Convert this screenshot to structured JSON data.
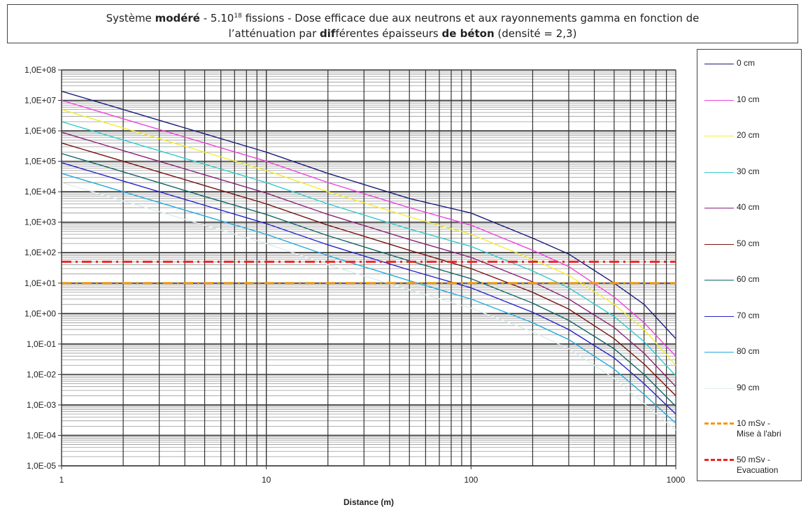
{
  "title": {
    "line1_pre": "Système ",
    "line1_bold1": "modéré",
    "line1_mid": " - 5.10",
    "line1_sup": "18",
    "line1_post": " fissions - Dose efficace due aux neutrons et aux rayonnements gamma en fonction de",
    "line2_pre": "l’atténuation par ",
    "line2_bold1": "dif",
    "line2_mid1": "férentes épaisseurs ",
    "line2_bold2": "de béton",
    "line2_post": " (densité = 2,3)"
  },
  "chart_data": {
    "type": "line",
    "xlabel": "Distance (m)",
    "ylabel": "",
    "xscale": "log",
    "yscale": "log",
    "xlim": [
      1,
      1000
    ],
    "ylim": [
      1e-05,
      100000000.0
    ],
    "grid": true,
    "legend_position": "right",
    "x_tick_labels": [
      "1",
      "10",
      "100",
      "1000"
    ],
    "y_tick_labels": [
      "1,0E+08",
      "1,0E+07",
      "1,0E+06",
      "1,0E+05",
      "1,0E+04",
      "1,0E+03",
      "1,0E+02",
      "1,0E+01",
      "1,0E+00",
      "1,0E-01",
      "1,0E-02",
      "1,0E-03",
      "1,0E-04",
      "1,0E-05"
    ],
    "x": [
      1,
      2,
      5,
      10,
      20,
      50,
      100,
      200,
      300,
      500,
      700,
      1000
    ],
    "series": [
      {
        "name": "0 cm",
        "color": "#1a1a7a",
        "dash": "solid",
        "values": [
          20000000.0,
          5000000.0,
          800000.0,
          200000.0,
          40000.0,
          6000.0,
          2000.0,
          300.0,
          90.0,
          10.0,
          2.0,
          0.15
        ]
      },
      {
        "name": "10 cm",
        "color": "#ee44dd",
        "dash": "solid",
        "values": [
          10000000.0,
          2500000.0,
          400000.0,
          100000.0,
          20000.0,
          3000.0,
          800.0,
          120.0,
          35.0,
          3.5,
          0.5,
          0.04
        ]
      },
      {
        "name": "20 cm",
        "color": "#f2ee30",
        "dash": "solid",
        "values": [
          5000000.0,
          1250000.0,
          200000.0,
          50000.0,
          10000.0,
          1500.0,
          400.0,
          60.0,
          18.0,
          2.0,
          0.3,
          0.02
        ]
      },
      {
        "name": "30 cm",
        "color": "#33cccc",
        "dash": "solid",
        "values": [
          2000000.0,
          500000.0,
          80000.0,
          20000.0,
          4000.0,
          600.0,
          160.0,
          25.0,
          7.0,
          0.8,
          0.12,
          0.009
        ]
      },
      {
        "name": "40 cm",
        "color": "#882277",
        "dash": "solid",
        "values": [
          900000.0,
          225000.0,
          36000.0,
          9000.0,
          1800.0,
          270.0,
          70.0,
          11.0,
          3.0,
          0.35,
          0.05,
          0.004
        ]
      },
      {
        "name": "50 cm",
        "color": "#771111",
        "dash": "solid",
        "values": [
          400000.0,
          100000.0,
          16000.0,
          4000.0,
          800.0,
          120.0,
          30.0,
          5.0,
          1.4,
          0.15,
          0.022,
          0.002
        ]
      },
      {
        "name": "60 cm",
        "color": "#116666",
        "dash": "solid",
        "values": [
          180000.0,
          45000.0,
          7000.0,
          1800.0,
          360.0,
          54.0,
          14.0,
          2.2,
          0.6,
          0.07,
          0.01,
          0.0009
        ]
      },
      {
        "name": "70 cm",
        "color": "#2222cc",
        "dash": "solid",
        "values": [
          90000.0,
          22500.0,
          3600.0,
          900.0,
          180.0,
          27.0,
          7.0,
          1.1,
          0.3,
          0.035,
          0.005,
          0.0005
        ]
      },
      {
        "name": "80 cm",
        "color": "#22aadd",
        "dash": "solid",
        "values": [
          40000.0,
          10000.0,
          1600.0,
          400.0,
          80.0,
          12.0,
          3.0,
          0.5,
          0.14,
          0.015,
          0.0022,
          0.00025
        ]
      },
      {
        "name": "90 cm",
        "color": "#ddeeee",
        "dash": "solid",
        "values": [
          20000.0,
          5000.0,
          800.0,
          200.0,
          40.0,
          6.0,
          1.5,
          0.25,
          0.07,
          0.0075,
          0.0011,
          0.00015
        ]
      },
      {
        "name": "10 mSv - Mise à l'abri",
        "color": "#f29a10",
        "dash": "dashed",
        "values": [
          10,
          10,
          10,
          10,
          10,
          10,
          10,
          10,
          10,
          10,
          10,
          10
        ]
      },
      {
        "name": "50 mSv - Evacuation",
        "color": "#ee2222",
        "dash": "dashed",
        "values": [
          50,
          50,
          50,
          50,
          50,
          50,
          50,
          50,
          50,
          50,
          50,
          50
        ]
      }
    ]
  },
  "legend": {
    "items": [
      {
        "line1": "0 cm",
        "line2": ""
      },
      {
        "line1": "10 cm",
        "line2": ""
      },
      {
        "line1": "20 cm",
        "line2": ""
      },
      {
        "line1": "30 cm",
        "line2": ""
      },
      {
        "line1": "40 cm",
        "line2": ""
      },
      {
        "line1": "50 cm",
        "line2": ""
      },
      {
        "line1": "60 cm",
        "line2": ""
      },
      {
        "line1": "70 cm",
        "line2": ""
      },
      {
        "line1": "80 cm",
        "line2": ""
      },
      {
        "line1": "90 cm",
        "line2": ""
      },
      {
        "line1": "10 mSv -",
        "line2": "Mise à l'abri"
      },
      {
        "line1": "50 mSv -",
        "line2": "Evacuation"
      }
    ]
  }
}
